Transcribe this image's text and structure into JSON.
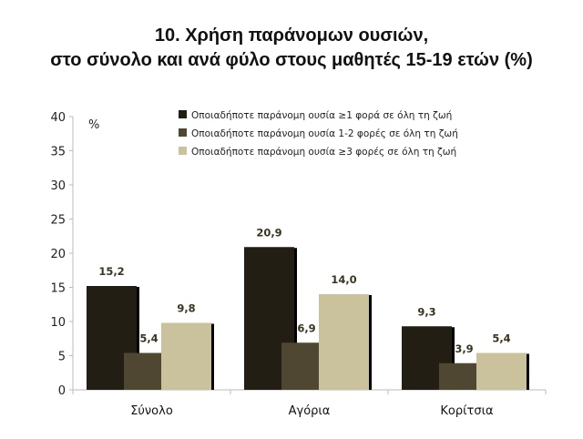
{
  "chart_data": {
    "type": "bar",
    "title_line1": "10. Χρήση παράνομων ουσιών,",
    "title_line2": "στο σύνολο και ανά φύλο στους μαθητές 15-19 ετών (%)",
    "ylabel": "%",
    "ylim": [
      0,
      40
    ],
    "yticks": [
      0,
      5,
      10,
      15,
      20,
      25,
      30,
      35,
      40
    ],
    "categories": [
      "Σύνολο",
      "Αγόρια",
      "Κορίτσια"
    ],
    "legend_position": "top-right",
    "series": [
      {
        "name": "Οποιαδήποτε παράνομη ουσία ≥1 φορά σε όλη τη ζωή",
        "color": "#221e13",
        "values": [
          15.2,
          20.9,
          9.3
        ],
        "labels": [
          "15,2",
          "20,9",
          "9,3"
        ]
      },
      {
        "name": "Οποιαδήποτε παράνομη ουσία 1-2 φορές σε όλη τη ζωή",
        "color": "#4f4731",
        "values": [
          5.4,
          6.9,
          3.9
        ],
        "labels": [
          "5,4",
          "6,9",
          "3,9"
        ]
      },
      {
        "name": "Οποιαδήποτε παράνομη ουσία ≥3 φορές σε όλη τη ζωή",
        "color": "#c9c29d",
        "values": [
          9.8,
          14.0,
          5.4
        ],
        "labels": [
          "9,8",
          "14,0",
          "5,4"
        ]
      }
    ]
  }
}
